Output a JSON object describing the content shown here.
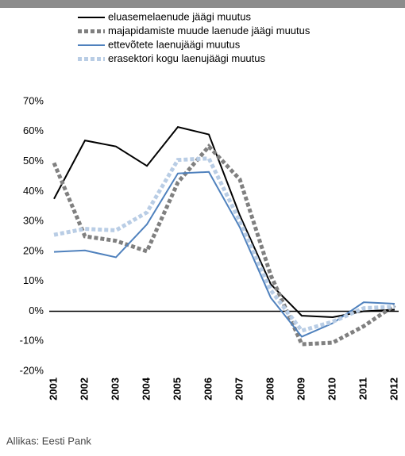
{
  "chart_data": {
    "type": "line",
    "categories": [
      "2001",
      "2002",
      "2003",
      "2004",
      "2005",
      "2006",
      "2007",
      "2008",
      "2009",
      "2010",
      "2011",
      "2012"
    ],
    "series": [
      {
        "name": "eluasemelaenude jäägi muutus",
        "color": "#000000",
        "dash": false,
        "values": [
          37.5,
          57,
          55,
          48.5,
          61.5,
          59,
          32,
          9,
          -1.5,
          -2,
          0,
          0.5
        ]
      },
      {
        "name": "majapidamiste muude laenude jäägi muutus",
        "color": "#808080",
        "dash": true,
        "values": [
          49.5,
          25,
          23.5,
          20,
          43,
          55,
          44,
          12,
          -11,
          -10.5,
          -5,
          2
        ]
      },
      {
        "name": "ettevõtete laenujäägi muutus",
        "color": "#4f81bd",
        "dash": false,
        "values": [
          19.8,
          20.3,
          18,
          29,
          46,
          46.5,
          28,
          4.5,
          -8.5,
          -4,
          3,
          2.5
        ]
      },
      {
        "name": "erasektori kogu laenujäägi muutus",
        "color": "#b9cde5",
        "dash": true,
        "values": [
          25.5,
          27.5,
          27,
          33,
          50.5,
          51,
          30,
          7,
          -6.5,
          -3.5,
          1,
          1.5
        ]
      }
    ],
    "ylim": [
      -20,
      70
    ],
    "yticks": [
      {
        "value": -20,
        "label": "-20%"
      },
      {
        "value": -10,
        "label": "-10%"
      },
      {
        "value": 0,
        "label": "0%"
      },
      {
        "value": 10,
        "label": "10%"
      },
      {
        "value": 20,
        "label": "20%"
      },
      {
        "value": 30,
        "label": "30%"
      },
      {
        "value": 40,
        "label": "40%"
      },
      {
        "value": 50,
        "label": "50%"
      },
      {
        "value": 60,
        "label": "60%"
      },
      {
        "value": 70,
        "label": "70%"
      }
    ],
    "source": "Allikas: Eesti Pank"
  }
}
